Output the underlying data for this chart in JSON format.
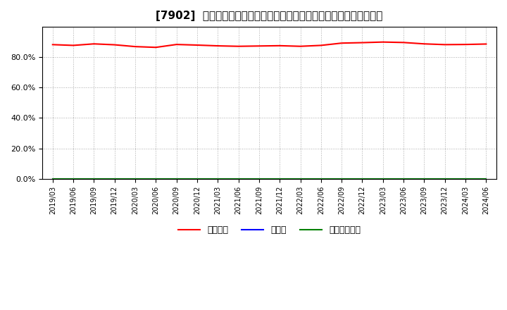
{
  "title": "[7902]  自己資本、のれん、繰延税金資産の総資産に対する比率の推移",
  "background_color": "#ffffff",
  "plot_bg_color": "#ffffff",
  "grid_color": "#aaaaaa",
  "x_labels": [
    "2019/03",
    "2019/06",
    "2019/09",
    "2019/12",
    "2020/03",
    "2020/06",
    "2020/09",
    "2020/12",
    "2021/03",
    "2021/06",
    "2021/09",
    "2021/12",
    "2022/03",
    "2022/06",
    "2022/09",
    "2022/12",
    "2023/03",
    "2023/06",
    "2023/09",
    "2023/12",
    "2024/03",
    "2024/06"
  ],
  "equity_ratio": [
    0.883,
    0.878,
    0.888,
    0.882,
    0.87,
    0.865,
    0.884,
    0.88,
    0.875,
    0.872,
    0.874,
    0.876,
    0.872,
    0.878,
    0.893,
    0.896,
    0.9,
    0.897,
    0.888,
    0.883,
    0.884,
    0.887
  ],
  "goodwill_ratio": [
    0.0,
    0.0,
    0.0,
    0.0,
    0.0,
    0.0,
    0.0,
    0.0,
    0.0,
    0.0,
    0.0,
    0.0,
    0.0,
    0.0,
    0.0,
    0.0,
    0.0,
    0.0,
    0.0,
    0.0,
    0.0,
    0.0
  ],
  "deferred_tax_ratio": [
    0.0,
    0.0,
    0.0,
    0.0,
    0.0,
    0.0,
    0.0,
    0.0,
    0.0,
    0.0,
    0.0,
    0.0,
    0.0,
    0.0,
    0.0,
    0.0,
    0.0,
    0.0,
    0.0,
    0.0,
    0.0,
    0.0
  ],
  "equity_color": "#ff0000",
  "goodwill_color": "#0000ff",
  "deferred_tax_color": "#008000",
  "ylim": [
    0.0,
    1.0
  ],
  "yticks": [
    0.0,
    0.2,
    0.4,
    0.6,
    0.8
  ],
  "legend_labels": [
    "自己資本",
    "のれん",
    "繰延税金資産"
  ],
  "title_fontsize": 11,
  "tick_fontsize": 7,
  "legend_fontsize": 9
}
